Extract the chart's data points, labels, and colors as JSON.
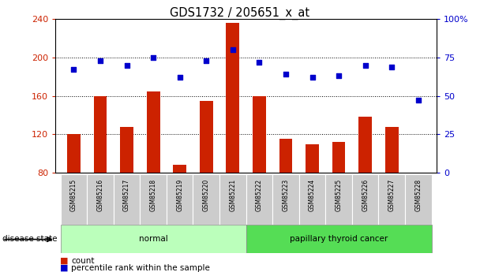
{
  "title": "GDS1732 / 205651_x_at",
  "samples": [
    "GSM85215",
    "GSM85216",
    "GSM85217",
    "GSM85218",
    "GSM85219",
    "GSM85220",
    "GSM85221",
    "GSM85222",
    "GSM85223",
    "GSM85224",
    "GSM85225",
    "GSM85226",
    "GSM85227",
    "GSM85228"
  ],
  "counts": [
    120,
    160,
    128,
    165,
    88,
    155,
    236,
    160,
    115,
    110,
    112,
    138,
    128,
    80
  ],
  "percentiles": [
    67,
    73,
    70,
    75,
    62,
    73,
    80,
    72,
    64,
    62,
    63,
    70,
    69,
    47
  ],
  "groups": [
    "normal",
    "normal",
    "normal",
    "normal",
    "normal",
    "normal",
    "normal",
    "papillary thyroid cancer",
    "papillary thyroid cancer",
    "papillary thyroid cancer",
    "papillary thyroid cancer",
    "papillary thyroid cancer",
    "papillary thyroid cancer",
    "papillary thyroid cancer"
  ],
  "bar_color": "#cc2200",
  "dot_color": "#0000cc",
  "ylim_left": [
    80,
    240
  ],
  "ylim_right": [
    0,
    100
  ],
  "yticks_left": [
    80,
    120,
    160,
    200,
    240
  ],
  "yticks_right": [
    0,
    25,
    50,
    75,
    100
  ],
  "legend_count_label": "count",
  "legend_pct_label": "percentile rank within the sample",
  "disease_state_label": "disease state",
  "normal_color": "#bbffbb",
  "cancer_color": "#55dd55",
  "tick_bg_color": "#cccccc"
}
